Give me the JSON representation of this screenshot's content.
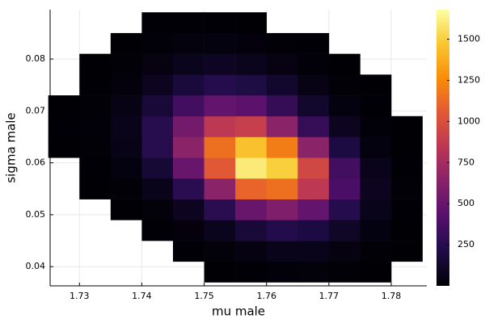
{
  "chart_data": {
    "type": "heatmap2d",
    "x_label": "mu male",
    "y_label": "sigma male",
    "xlim": [
      1.7253,
      1.7857
    ],
    "ylim": [
      0.0363,
      0.0895
    ],
    "xticks": [
      1.73,
      1.74,
      1.75,
      1.76,
      1.77,
      1.78
    ],
    "yticks": [
      0.04,
      0.05,
      0.06,
      0.07,
      0.08
    ],
    "grid": true,
    "colormap": "inferno",
    "clim": [
      0,
      1680
    ],
    "cticks": [
      250,
      500,
      750,
      1000,
      1250,
      1500
    ],
    "xbins": [
      1.725,
      1.73,
      1.735,
      1.74,
      1.745,
      1.75,
      1.755,
      1.76,
      1.765,
      1.77,
      1.775,
      1.78,
      1.785
    ],
    "ybins": [
      0.037,
      0.041,
      0.045,
      0.049,
      0.053,
      0.057,
      0.061,
      0.065,
      0.069,
      0.073,
      0.077,
      0.081,
      0.085,
      0.089
    ],
    "z": [
      [
        null,
        null,
        null,
        null,
        null,
        3,
        8,
        15,
        18,
        10,
        3,
        null
      ],
      [
        null,
        null,
        null,
        null,
        5,
        20,
        45,
        70,
        70,
        40,
        12,
        2
      ],
      [
        null,
        null,
        null,
        5,
        25,
        80,
        170,
        230,
        200,
        110,
        35,
        4
      ],
      [
        null,
        null,
        4,
        20,
        90,
        260,
        500,
        600,
        480,
        240,
        70,
        8
      ],
      [
        null,
        2,
        12,
        70,
        260,
        650,
        1100,
        1150,
        850,
        380,
        90,
        10
      ],
      [
        null,
        6,
        35,
        160,
        500,
        1050,
        1600,
        1500,
        950,
        350,
        70,
        8
      ],
      [
        4,
        12,
        60,
        250,
        650,
        1150,
        1450,
        1200,
        650,
        200,
        35,
        4
      ],
      [
        5,
        15,
        70,
        250,
        550,
        850,
        900,
        650,
        300,
        90,
        15,
        2
      ],
      [
        3,
        10,
        50,
        170,
        350,
        480,
        450,
        300,
        130,
        35,
        6,
        null
      ],
      [
        null,
        5,
        25,
        90,
        180,
        240,
        210,
        130,
        50,
        12,
        2,
        null
      ],
      [
        null,
        2,
        10,
        40,
        80,
        100,
        80,
        45,
        15,
        3,
        null,
        null
      ],
      [
        null,
        null,
        3,
        15,
        30,
        35,
        25,
        12,
        5,
        null,
        null,
        null
      ],
      [
        null,
        null,
        null,
        5,
        8,
        6,
        3,
        null,
        null,
        null,
        null,
        null
      ]
    ]
  }
}
